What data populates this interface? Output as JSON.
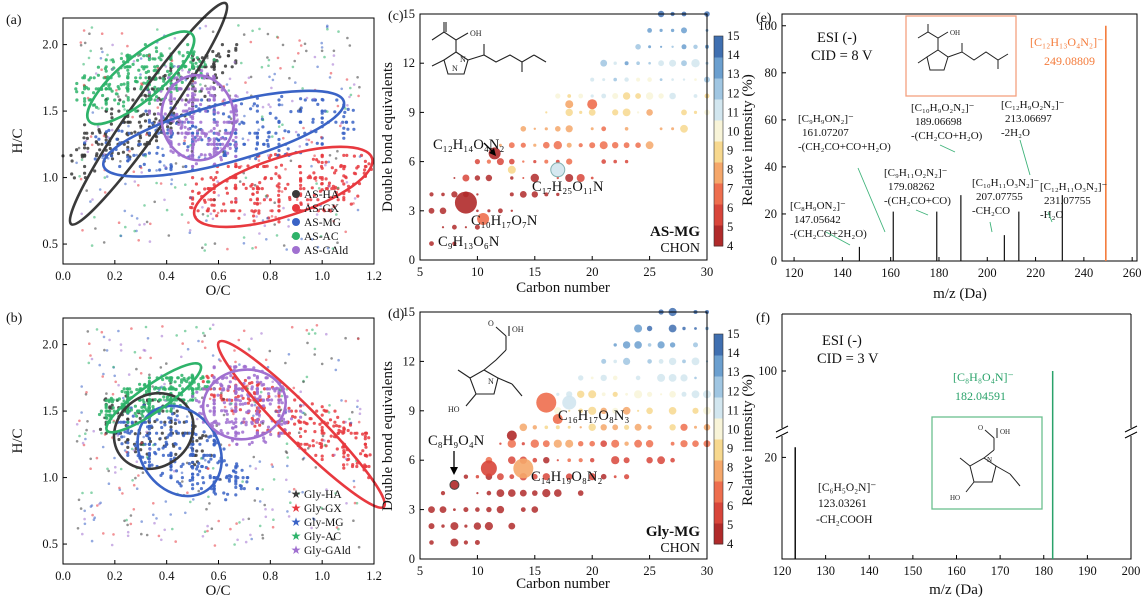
{
  "palette": {
    "HA": "#3a3a3a",
    "GX": "#e8393f",
    "MG": "#3a63c6",
    "AC": "#2eb36a",
    "GAld": "#a070d0",
    "cmap": [
      "#b02a2a",
      "#d8453a",
      "#ee6e4e",
      "#f5a76a",
      "#f7d88e",
      "#f8f4d8",
      "#d2e6ef",
      "#a0c6e2",
      "#6b9fcf",
      "#3f6fb0"
    ],
    "spec_e": "#f47c3c",
    "spec_f": "#2aa26a"
  },
  "panel_a": {
    "label": "(a)",
    "xlabel": "O/C",
    "ylabel": "H/C",
    "xticks": [
      "0.0",
      "0.2",
      "0.4",
      "0.6",
      "0.8",
      "1.0",
      "1.2"
    ],
    "yticks": [
      "0.5",
      "1.0",
      "1.5",
      "2.0"
    ],
    "legend": [
      "AS-HA",
      "AS-GX",
      "AS-MG",
      "AS-AC",
      "AS-GAld"
    ]
  },
  "panel_b": {
    "label": "(b)",
    "xlabel": "O/C",
    "ylabel": "H/C",
    "xticks": [
      "0.0",
      "0.2",
      "0.4",
      "0.6",
      "0.8",
      "1.0",
      "1.2"
    ],
    "yticks": [
      "0.5",
      "1.0",
      "1.5",
      "2.0"
    ],
    "legend": [
      "Gly-HA",
      "Gly-GX",
      "Gly-MG",
      "Gly-AC",
      "Gly-GAld"
    ]
  },
  "panel_c": {
    "label": "(c)",
    "xlabel": "Carbon number",
    "ylabel": "Double bond equivalents",
    "xticks": [
      "5",
      "10",
      "15",
      "20",
      "25",
      "30"
    ],
    "yticks": [
      "0",
      "3",
      "6",
      "9",
      "12",
      "15"
    ],
    "cbar_ticks": [
      "15",
      "14",
      "13",
      "12",
      "11",
      "10",
      "9",
      "8",
      "7",
      "6",
      "5",
      "4"
    ],
    "tag1": "AS-MG",
    "tag2": "CHON",
    "f1": "C₁₂H₁₄O₄N₂",
    "f2": "C₁₇H₂₅O₁₁N",
    "f3": "C₁₀H₁₇O₇N",
    "f4": "C₉H₁₃O₆N"
  },
  "panel_d": {
    "label": "(d)",
    "xlabel": "Carbon number",
    "ylabel": "Double bond equivalents",
    "xticks": [
      "5",
      "10",
      "15",
      "20",
      "25",
      "30"
    ],
    "yticks": [
      "0",
      "3",
      "6",
      "9",
      "12",
      "15"
    ],
    "cbar_ticks": [
      "15",
      "14",
      "13",
      "12",
      "11",
      "10",
      "9",
      "8",
      "7",
      "6",
      "5",
      "4"
    ],
    "tag1": "Gly-MG",
    "tag2": "CHON",
    "f1": "C₁₆H₁₇O₈N₃",
    "f2": "C₈H₉O₄N",
    "f3": "C₁₄H₁₉O₈N₂"
  },
  "panel_e": {
    "label": "(e)",
    "xlabel": "m/z (Da)",
    "ylabel": "Relative intensity (%)",
    "xticks": [
      "120",
      "140",
      "160",
      "180",
      "200",
      "220",
      "240",
      "260"
    ],
    "yticks": [
      "0",
      "20",
      "40",
      "60",
      "80",
      "100"
    ],
    "mode": "ESI (-)",
    "cid": "CID = 8 V",
    "parent_formula": "[C₁₂H₁₃O₄N₂]⁻",
    "parent_mz": "249.08809",
    "frags": [
      {
        "f": "[C₉H₉ON₂]⁻",
        "mz": "161.07207",
        "loss": "-(CH₂CO+CO+H₂O)"
      },
      {
        "f": "[C₁₀H₉O₂N₂]⁻",
        "mz": "189.06698",
        "loss": "-(CH₂CO+H₂O)"
      },
      {
        "f": "[C₁₂H₉O₂N₂]⁻",
        "mz": "213.06697",
        "loss": "-2H₂O"
      },
      {
        "f": "[C₉H₁₁O₂N₂]⁻",
        "mz": "179.08262",
        "loss": "-(CH₂CO+CO)"
      },
      {
        "f": "[C₁₂H₁₁O₃N₂]⁻",
        "mz": "231.07755",
        "loss": "-H₂O"
      },
      {
        "f": "[C₈H₉ON₂]⁻",
        "mz": "147.05642",
        "loss": "-(CH₂CO+2H₂O)"
      },
      {
        "f": "[C₁₀H₁₁O₃N₂]⁻",
        "mz": "207.07755",
        "loss": "-CH₂CO"
      }
    ]
  },
  "panel_f": {
    "label": "(f)",
    "xlabel": "m/z (Da)",
    "ylabel": "Relative intensity (%)",
    "xticks": [
      "120",
      "130",
      "140",
      "150",
      "160",
      "170",
      "180",
      "190",
      "200"
    ],
    "yticks": [
      "20",
      "100"
    ],
    "mode": "ESI (-)",
    "cid": "CID = 3 V",
    "parent_formula": "[C₈H₈O₄N]⁻",
    "parent_mz": "182.04591",
    "frag_formula": "[C₆H₅O₂N]⁻",
    "frag_mz": "123.03261",
    "frag_loss": "-CH₂COOH"
  },
  "chart_data": [
    {
      "panel": "a",
      "type": "scatter",
      "xlabel": "O/C",
      "ylabel": "H/C",
      "xlim": [
        0,
        1.2
      ],
      "ylim": [
        0.35,
        2.2
      ],
      "series": [
        {
          "name": "AS-HA",
          "ellipse": {
            "cx": 0.33,
            "cy": 1.48,
            "rx": 0.52,
            "ry": 0.13,
            "angle_deg": 55
          }
        },
        {
          "name": "AS-GX",
          "ellipse": {
            "cx": 0.85,
            "cy": 0.93,
            "rx": 0.36,
            "ry": 0.22,
            "angle_deg": 18
          }
        },
        {
          "name": "AS-MG",
          "ellipse": {
            "cx": 0.62,
            "cy": 1.33,
            "rx": 0.48,
            "ry": 0.22,
            "angle_deg": 15
          }
        },
        {
          "name": "AS-AC",
          "ellipse": {
            "cx": 0.3,
            "cy": 1.75,
            "rx": 0.26,
            "ry": 0.16,
            "angle_deg": 40
          }
        },
        {
          "name": "AS-GAld",
          "ellipse": {
            "cx": 0.52,
            "cy": 1.45,
            "rx": 0.14,
            "ry": 0.32,
            "angle_deg": 5
          }
        }
      ]
    },
    {
      "panel": "b",
      "type": "scatter",
      "xlabel": "O/C",
      "ylabel": "H/C",
      "xlim": [
        0,
        1.2
      ],
      "ylim": [
        0.35,
        2.2
      ],
      "series": [
        {
          "name": "Gly-HA",
          "ellipse": {
            "cx": 0.35,
            "cy": 1.35,
            "rx": 0.16,
            "ry": 0.27,
            "angle_deg": 35
          }
        },
        {
          "name": "Gly-GX",
          "ellipse": {
            "cx": 0.92,
            "cy": 1.4,
            "rx": 0.45,
            "ry": 0.13,
            "angle_deg": -45
          }
        },
        {
          "name": "Gly-MG",
          "ellipse": {
            "cx": 0.45,
            "cy": 1.2,
            "rx": 0.15,
            "ry": 0.36,
            "angle_deg": 35
          }
        },
        {
          "name": "Gly-AC",
          "ellipse": {
            "cx": 0.35,
            "cy": 1.6,
            "rx": 0.22,
            "ry": 0.1,
            "angle_deg": 35
          }
        },
        {
          "name": "Gly-GAld",
          "ellipse": {
            "cx": 0.7,
            "cy": 1.55,
            "rx": 0.16,
            "ry": 0.26,
            "angle_deg": 10
          }
        }
      ]
    },
    {
      "panel": "c",
      "type": "scatter",
      "xlabel": "Carbon number",
      "ylabel": "Double bond equivalents",
      "xlim": [
        5,
        30
      ],
      "ylim": [
        0,
        15
      ],
      "color_scale": [
        4,
        15
      ]
    },
    {
      "panel": "d",
      "type": "scatter",
      "xlabel": "Carbon number",
      "ylabel": "Double bond equivalents",
      "xlim": [
        5,
        30
      ],
      "ylim": [
        0,
        15
      ],
      "color_scale": [
        4,
        15
      ]
    },
    {
      "panel": "e",
      "type": "bar",
      "xlabel": "m/z (Da)",
      "ylabel": "Relative intensity (%)",
      "xlim": [
        115,
        262
      ],
      "ylim": [
        0,
        105
      ],
      "x": [
        147.05642,
        161.07207,
        179.08262,
        189.06698,
        207.07755,
        213.06697,
        231.07755,
        249.08809
      ],
      "values": [
        6,
        21,
        21,
        28,
        11,
        21,
        28,
        100
      ]
    },
    {
      "panel": "f",
      "type": "bar",
      "xlabel": "m/z (Da)",
      "ylabel": "Relative intensity (%)",
      "xlim": [
        120,
        200
      ],
      "ylim": [
        0,
        105
      ],
      "y_break": [
        25,
        95
      ],
      "x": [
        123.03261,
        182.04591
      ],
      "values": [
        22,
        100
      ]
    }
  ]
}
